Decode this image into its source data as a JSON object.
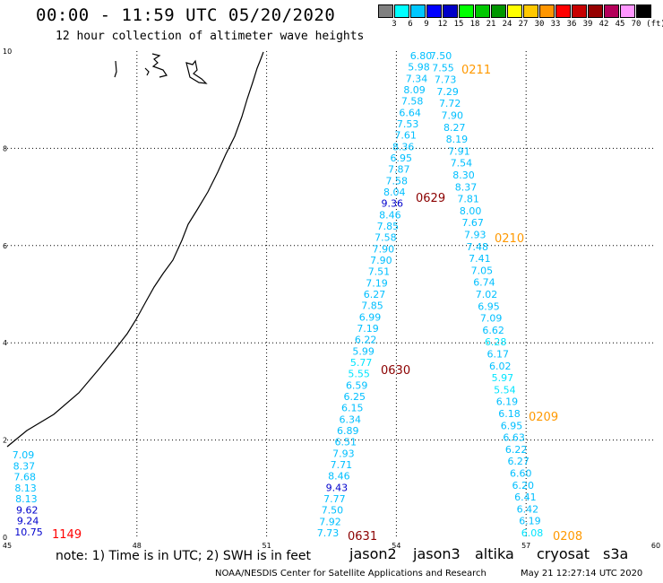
{
  "header": {
    "title": "00:00 - 11:59 UTC 05/20/2020",
    "subtitle": "12 hour collection of altimeter wave heights"
  },
  "legend": {
    "colors": [
      "#808080",
      "#00ffff",
      "#00c8ff",
      "#0000ff",
      "#0000c8",
      "#00ff00",
      "#00c800",
      "#009600",
      "#ffff00",
      "#ffc800",
      "#ff9600",
      "#ff0000",
      "#c80000",
      "#960000",
      "#b4005a",
      "#ff96ff",
      "#000000"
    ],
    "labels": [
      "3",
      "6",
      "9",
      "12",
      "15",
      "18",
      "21",
      "24",
      "27",
      "30",
      "33",
      "36",
      "39",
      "42",
      "45",
      "70"
    ],
    "unit": "(ft)"
  },
  "axes": {
    "x_ticks": [
      "45",
      "48",
      "51",
      "54",
      "57",
      "60"
    ],
    "y_ticks": [
      "0",
      "2",
      "4",
      "6",
      "8",
      "10"
    ]
  },
  "passes": [
    {
      "label": "0211",
      "color": "#ff9900"
    },
    {
      "label": "0629",
      "color": "#8b0000"
    },
    {
      "label": "0210",
      "color": "#ff9900"
    },
    {
      "label": "0630",
      "color": "#8b0000"
    },
    {
      "label": "0209",
      "color": "#ff9900"
    },
    {
      "label": "0631",
      "color": "#8b0000"
    },
    {
      "label": "0208",
      "color": "#ff9900"
    },
    {
      "label": "1149",
      "color": "#ff0000"
    }
  ],
  "tracks": [
    {
      "values": [
        "6.80",
        "5.98",
        "7.34",
        "8.09",
        "7.58",
        "6.64",
        "7.53",
        "7.61",
        "8.36",
        "6.95",
        "7.87",
        "7.58",
        "8.04",
        "9.36",
        "8.46",
        "7.85",
        "7.58",
        "7.90",
        "7.90",
        "7.51",
        "7.19",
        "6.27",
        "7.85",
        "6.99",
        "7.19",
        "6.22",
        "5.99",
        "5.77",
        "5.55",
        "6.59",
        "6.25",
        "6.15",
        "6.34",
        "6.89",
        "6.51",
        "7.93",
        "7.71",
        "8.46",
        "9.43",
        "7.77",
        "7.50",
        "7.92",
        "7.73"
      ],
      "colors": [
        "#00bfff",
        "#00bfff",
        "#00bfff",
        "#00bfff",
        "#00bfff",
        "#00bfff",
        "#00bfff",
        "#00bfff",
        "#00bfff",
        "#00bfff",
        "#00bfff",
        "#00bfff",
        "#00bfff",
        "#0000cd",
        "#00bfff",
        "#00bfff",
        "#00bfff",
        "#00bfff",
        "#00bfff",
        "#00bfff",
        "#00bfff",
        "#00bfff",
        "#00bfff",
        "#00bfff",
        "#00bfff",
        "#00bfff",
        "#00bfff",
        "#00e5ff",
        "#00e5ff",
        "#00bfff",
        "#00bfff",
        "#00bfff",
        "#00bfff",
        "#00bfff",
        "#00bfff",
        "#00bfff",
        "#00bfff",
        "#00bfff",
        "#0000cd",
        "#00bfff",
        "#00bfff",
        "#00bfff",
        "#00bfff"
      ]
    },
    {
      "values": [
        "7.50",
        "7.55",
        "7.73",
        "7.29",
        "7.72",
        "7.90",
        "8.27",
        "8.19",
        "7.91",
        "7.54",
        "8.30",
        "8.37",
        "7.81",
        "8.00",
        "7.67",
        "7.93",
        "7.48",
        "7.41",
        "7.05",
        "6.74",
        "7.02",
        "6.95",
        "7.09",
        "6.62",
        "6.28",
        "6.17",
        "6.02",
        "5.97",
        "5.54",
        "6.19",
        "6.18",
        "6.95",
        "6.63",
        "6.22",
        "6.27",
        "6.60",
        "6.20",
        "6.41",
        "6.42",
        "6.19",
        "6.08"
      ],
      "colors": [
        "#00bfff",
        "#00bfff",
        "#00bfff",
        "#00bfff",
        "#00bfff",
        "#00bfff",
        "#00bfff",
        "#00bfff",
        "#00bfff",
        "#00bfff",
        "#00bfff",
        "#00bfff",
        "#00bfff",
        "#00bfff",
        "#00bfff",
        "#00bfff",
        "#00bfff",
        "#00bfff",
        "#00bfff",
        "#00bfff",
        "#00bfff",
        "#00bfff",
        "#00bfff",
        "#00bfff",
        "#00e5ff",
        "#00bfff",
        "#00bfff",
        "#00e5ff",
        "#00e5ff",
        "#00bfff",
        "#00bfff",
        "#00bfff",
        "#00bfff",
        "#00bfff",
        "#00bfff",
        "#00bfff",
        "#00bfff",
        "#00bfff",
        "#00bfff",
        "#00bfff",
        "#00e5ff"
      ]
    },
    {
      "values": [
        "7.09",
        "8.37",
        "7.68",
        "8.13",
        "8.13",
        "9.62",
        "9.24",
        "10.75"
      ],
      "colors": [
        "#00bfff",
        "#00bfff",
        "#00bfff",
        "#00bfff",
        "#00bfff",
        "#0000cd",
        "#0000cd",
        "#0000cd"
      ]
    }
  ],
  "footer": {
    "note": "note: 1) Time is in UTC; 2) SWH is in feet",
    "satellites": [
      {
        "name": "jason2",
        "color": "#0000cd"
      },
      {
        "name": "jason3",
        "color": "#009900"
      },
      {
        "name": "altika",
        "color": "#ff9900"
      },
      {
        "name": "cryosat",
        "color": "#dd0000"
      },
      {
        "name": "s3a",
        "color": "#8b0000"
      }
    ],
    "credit": "NOAA/NESDIS Center for Satellite Applications and Research",
    "timestamp": "May 21 12:27:14 UTC 2020"
  }
}
